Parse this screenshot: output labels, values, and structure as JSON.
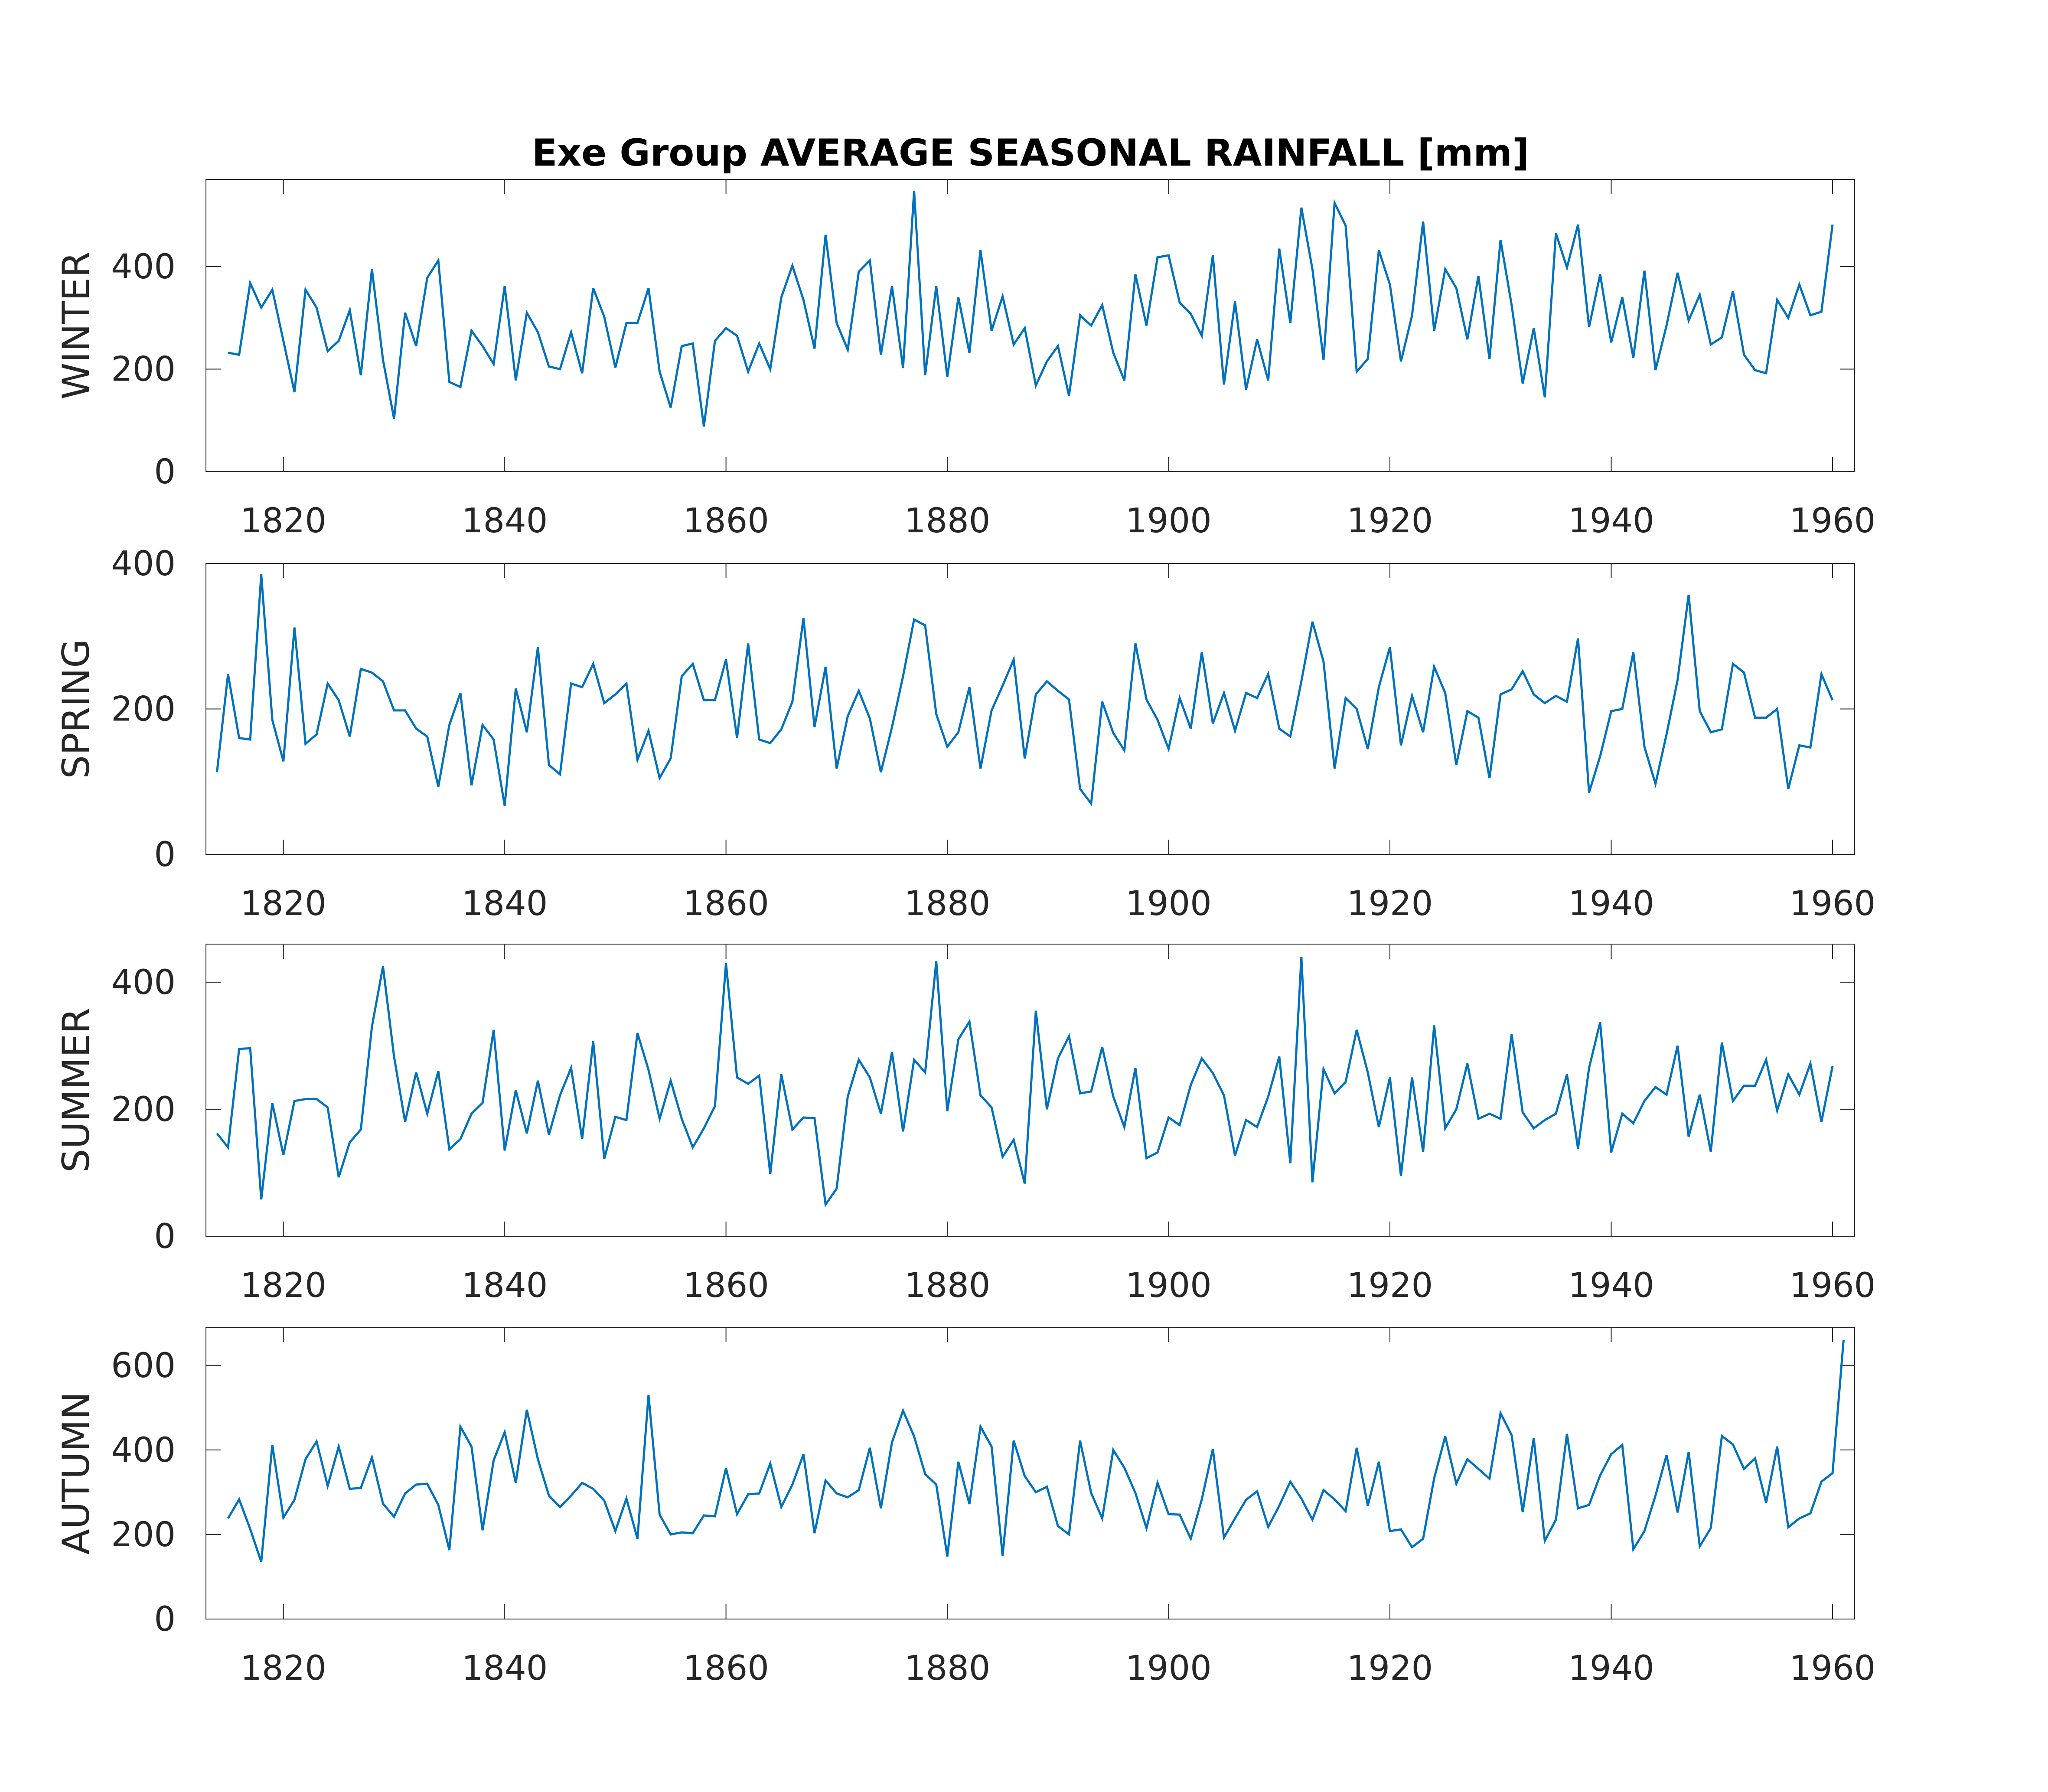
{
  "chart_data": {
    "type": "line",
    "title": "Exe Group AVERAGE SEASONAL RAINFALL [mm]",
    "line_color": "#0072BD",
    "x_ticks": [
      1820,
      1840,
      1860,
      1880,
      1900,
      1920,
      1940,
      1960
    ],
    "xlim": [
      1813,
      1962
    ],
    "grid": false,
    "panels": [
      {
        "ylabel": "WINTER",
        "ylim": [
          0,
          570
        ],
        "y_ticks": [
          0,
          200,
          400
        ],
        "x": [
          1815,
          1816,
          1817,
          1818,
          1819,
          1820,
          1821,
          1822,
          1823,
          1824,
          1825,
          1826,
          1827,
          1828,
          1829,
          1830,
          1831,
          1832,
          1833,
          1834,
          1835,
          1836,
          1837,
          1838,
          1839,
          1840,
          1841,
          1842,
          1843,
          1844,
          1845,
          1846,
          1847,
          1848,
          1849,
          1850,
          1851,
          1852,
          1853,
          1854,
          1855,
          1856,
          1857,
          1858,
          1859,
          1860,
          1861,
          1862,
          1863,
          1864,
          1865,
          1866,
          1867,
          1868,
          1869,
          1870,
          1871,
          1872,
          1873,
          1874,
          1875,
          1876,
          1877,
          1878,
          1879,
          1880,
          1881,
          1882,
          1883,
          1884,
          1885,
          1886,
          1887,
          1888,
          1889,
          1890,
          1891,
          1892,
          1893,
          1894,
          1895,
          1896,
          1897,
          1898,
          1899,
          1900,
          1901,
          1902,
          1903,
          1904,
          1905,
          1906,
          1907,
          1908,
          1909,
          1910,
          1911,
          1912,
          1913,
          1914,
          1915,
          1916,
          1917,
          1918,
          1919,
          1920,
          1921,
          1922,
          1923,
          1924,
          1925,
          1926,
          1927,
          1928,
          1929,
          1930,
          1931,
          1932,
          1933,
          1934,
          1935,
          1936,
          1937,
          1938,
          1939,
          1940,
          1941,
          1942,
          1943,
          1944,
          1945,
          1946,
          1947,
          1948,
          1949,
          1950,
          1951,
          1952,
          1953,
          1954,
          1955,
          1956,
          1957,
          1958,
          1959,
          1960
        ],
        "values": [
          232,
          228,
          368,
          320,
          355,
          255,
          155,
          355,
          320,
          235,
          255,
          315,
          188,
          395,
          218,
          103,
          310,
          245,
          378,
          412,
          175,
          165,
          275,
          245,
          210,
          362,
          178,
          310,
          272,
          205,
          200,
          272,
          192,
          358,
          302,
          203,
          290,
          290,
          358,
          195,
          125,
          245,
          250,
          88,
          255,
          280,
          265,
          195,
          250,
          200,
          340,
          402,
          335,
          240,
          462,
          290,
          238,
          390,
          412,
          228,
          362,
          202,
          548,
          188,
          362,
          185,
          340,
          232,
          432,
          275,
          342,
          248,
          280,
          168,
          215,
          245,
          148,
          305,
          285,
          325,
          232,
          178,
          385,
          285,
          418,
          422,
          330,
          308,
          265,
          422,
          170,
          332,
          160,
          258,
          178,
          435,
          290,
          515,
          395,
          218,
          524,
          480,
          195,
          220,
          432,
          365,
          215,
          305,
          488,
          275,
          395,
          358,
          258,
          382,
          220,
          452,
          325,
          172,
          280,
          145,
          465,
          398,
          482,
          282,
          385,
          252,
          340,
          222,
          392,
          198,
          285,
          388,
          295,
          345,
          248,
          262,
          352,
          228,
          198,
          192,
          335,
          300,
          365,
          305,
          312,
          482
        ]
      },
      {
        "ylabel": "SPRING",
        "ylim": [
          0,
          400
        ],
        "y_ticks": [
          0,
          200,
          400
        ],
        "x": [
          1814,
          1815,
          1816,
          1817,
          1818,
          1819,
          1820,
          1821,
          1822,
          1823,
          1824,
          1825,
          1826,
          1827,
          1828,
          1829,
          1830,
          1831,
          1832,
          1833,
          1834,
          1835,
          1836,
          1837,
          1838,
          1839,
          1840,
          1841,
          1842,
          1843,
          1844,
          1845,
          1846,
          1847,
          1848,
          1849,
          1850,
          1851,
          1852,
          1853,
          1854,
          1855,
          1856,
          1857,
          1858,
          1859,
          1860,
          1861,
          1862,
          1863,
          1864,
          1865,
          1866,
          1867,
          1868,
          1869,
          1870,
          1871,
          1872,
          1873,
          1874,
          1875,
          1876,
          1877,
          1878,
          1879,
          1880,
          1881,
          1882,
          1883,
          1884,
          1885,
          1886,
          1887,
          1888,
          1889,
          1890,
          1891,
          1892,
          1893,
          1894,
          1895,
          1896,
          1897,
          1898,
          1899,
          1900,
          1901,
          1902,
          1903,
          1904,
          1905,
          1906,
          1907,
          1908,
          1909,
          1910,
          1911,
          1912,
          1913,
          1914,
          1915,
          1916,
          1917,
          1918,
          1919,
          1920,
          1921,
          1922,
          1923,
          1924,
          1925,
          1926,
          1927,
          1928,
          1929,
          1930,
          1931,
          1932,
          1933,
          1934,
          1935,
          1936,
          1937,
          1938,
          1939,
          1940,
          1941,
          1942,
          1943,
          1944,
          1945,
          1946,
          1947,
          1948,
          1949,
          1950,
          1951,
          1952,
          1953,
          1954,
          1955,
          1956,
          1957,
          1958,
          1959,
          1960
        ],
        "values": [
          113,
          248,
          160,
          158,
          385,
          185,
          128,
          312,
          152,
          165,
          235,
          212,
          162,
          255,
          250,
          238,
          198,
          198,
          173,
          162,
          93,
          178,
          222,
          95,
          178,
          158,
          67,
          228,
          168,
          285,
          123,
          110,
          235,
          230,
          262,
          208,
          220,
          235,
          130,
          170,
          105,
          132,
          245,
          262,
          212,
          212,
          268,
          160,
          290,
          158,
          153,
          172,
          210,
          325,
          175,
          258,
          118,
          190,
          225,
          187,
          113,
          175,
          245,
          323,
          315,
          193,
          148,
          168,
          230,
          118,
          198,
          232,
          268,
          132,
          220,
          238,
          225,
          213,
          90,
          70,
          210,
          167,
          143,
          290,
          213,
          185,
          145,
          215,
          173,
          278,
          180,
          222,
          170,
          222,
          215,
          248,
          173,
          162,
          238,
          320,
          265,
          118,
          215,
          200,
          145,
          230,
          285,
          150,
          218,
          168,
          258,
          222,
          123,
          197,
          188,
          105,
          220,
          227,
          252,
          220,
          208,
          218,
          210,
          297,
          85,
          135,
          197,
          200,
          278,
          148,
          97,
          165,
          240,
          357,
          197,
          168,
          172,
          262,
          250,
          188,
          188,
          200,
          90,
          150,
          147,
          248,
          212
        ]
      },
      {
        "ylabel": "SUMMER",
        "ylim": [
          0,
          460
        ],
        "y_ticks": [
          0,
          200,
          400
        ],
        "x": [
          1814,
          1815,
          1816,
          1817,
          1818,
          1819,
          1820,
          1821,
          1822,
          1823,
          1824,
          1825,
          1826,
          1827,
          1828,
          1829,
          1830,
          1831,
          1832,
          1833,
          1834,
          1835,
          1836,
          1837,
          1838,
          1839,
          1840,
          1841,
          1842,
          1843,
          1844,
          1845,
          1846,
          1847,
          1848,
          1849,
          1850,
          1851,
          1852,
          1853,
          1854,
          1855,
          1856,
          1857,
          1858,
          1859,
          1860,
          1861,
          1862,
          1863,
          1864,
          1865,
          1866,
          1867,
          1868,
          1869,
          1870,
          1871,
          1872,
          1873,
          1874,
          1875,
          1876,
          1877,
          1878,
          1879,
          1880,
          1881,
          1882,
          1883,
          1884,
          1885,
          1886,
          1887,
          1888,
          1889,
          1890,
          1891,
          1892,
          1893,
          1894,
          1895,
          1896,
          1897,
          1898,
          1899,
          1900,
          1901,
          1902,
          1903,
          1904,
          1905,
          1906,
          1907,
          1908,
          1909,
          1910,
          1911,
          1912,
          1913,
          1914,
          1915,
          1916,
          1917,
          1918,
          1919,
          1920,
          1921,
          1922,
          1923,
          1924,
          1925,
          1926,
          1927,
          1928,
          1929,
          1930,
          1931,
          1932,
          1933,
          1934,
          1935,
          1936,
          1937,
          1938,
          1939,
          1940,
          1941,
          1942,
          1943,
          1944,
          1945,
          1946,
          1947,
          1948,
          1949,
          1950,
          1951,
          1952,
          1953,
          1954,
          1955,
          1956,
          1957,
          1958,
          1959,
          1960
        ],
        "values": [
          162,
          140,
          295,
          296,
          58,
          210,
          128,
          213,
          216,
          216,
          203,
          93,
          148,
          168,
          330,
          425,
          283,
          180,
          258,
          193,
          260,
          137,
          153,
          193,
          210,
          325,
          135,
          230,
          162,
          245,
          160,
          222,
          265,
          153,
          307,
          122,
          188,
          183,
          320,
          262,
          185,
          245,
          185,
          140,
          170,
          205,
          430,
          250,
          240,
          253,
          98,
          255,
          168,
          187,
          186,
          50,
          75,
          220,
          278,
          250,
          193,
          290,
          165,
          278,
          258,
          433,
          197,
          310,
          338,
          222,
          203,
          125,
          152,
          83,
          355,
          200,
          280,
          315,
          225,
          228,
          298,
          220,
          172,
          265,
          123,
          132,
          187,
          175,
          238,
          280,
          257,
          222,
          127,
          183,
          172,
          220,
          283,
          115,
          440,
          85,
          263,
          225,
          243,
          325,
          258,
          172,
          250,
          95,
          250,
          133,
          332,
          170,
          200,
          272,
          185,
          193,
          185,
          318,
          195,
          170,
          183,
          193,
          255,
          138,
          265,
          337,
          132,
          193,
          178,
          213,
          235,
          223,
          300,
          157,
          223,
          133,
          305,
          213,
          237,
          237,
          278,
          198,
          255,
          223,
          272,
          180,
          268
        ]
      },
      {
        "ylabel": "AUTUMN",
        "ylim": [
          0,
          690
        ],
        "y_ticks": [
          0,
          200,
          400,
          600
        ],
        "x": [
          1815,
          1816,
          1817,
          1818,
          1819,
          1820,
          1821,
          1822,
          1823,
          1824,
          1825,
          1826,
          1827,
          1828,
          1829,
          1830,
          1831,
          1832,
          1833,
          1834,
          1835,
          1836,
          1837,
          1838,
          1839,
          1840,
          1841,
          1842,
          1843,
          1844,
          1845,
          1846,
          1847,
          1848,
          1849,
          1850,
          1851,
          1852,
          1853,
          1854,
          1855,
          1856,
          1857,
          1858,
          1859,
          1860,
          1861,
          1862,
          1863,
          1864,
          1865,
          1866,
          1867,
          1868,
          1869,
          1870,
          1871,
          1872,
          1873,
          1874,
          1875,
          1876,
          1877,
          1878,
          1879,
          1880,
          1881,
          1882,
          1883,
          1884,
          1885,
          1886,
          1887,
          1888,
          1889,
          1890,
          1891,
          1892,
          1893,
          1894,
          1895,
          1896,
          1897,
          1898,
          1899,
          1900,
          1901,
          1902,
          1903,
          1904,
          1905,
          1906,
          1907,
          1908,
          1909,
          1910,
          1911,
          1912,
          1913,
          1914,
          1915,
          1916,
          1917,
          1918,
          1919,
          1920,
          1921,
          1922,
          1923,
          1924,
          1925,
          1926,
          1927,
          1928,
          1929,
          1930,
          1931,
          1932,
          1933,
          1934,
          1935,
          1936,
          1937,
          1938,
          1939,
          1940,
          1941,
          1942,
          1943,
          1944,
          1945,
          1946,
          1947,
          1948,
          1949,
          1950,
          1951,
          1952,
          1953,
          1954,
          1955,
          1956,
          1957,
          1958,
          1959,
          1960,
          1961
        ],
        "values": [
          238,
          283,
          213,
          135,
          412,
          240,
          282,
          378,
          420,
          315,
          408,
          308,
          310,
          382,
          273,
          242,
          297,
          318,
          320,
          270,
          163,
          455,
          408,
          210,
          375,
          442,
          322,
          495,
          378,
          292,
          265,
          292,
          322,
          308,
          280,
          208,
          285,
          190,
          530,
          247,
          200,
          205,
          203,
          245,
          243,
          357,
          248,
          295,
          297,
          368,
          265,
          318,
          390,
          203,
          328,
          297,
          288,
          305,
          405,
          262,
          418,
          493,
          432,
          343,
          318,
          148,
          372,
          272,
          455,
          408,
          150,
          422,
          338,
          300,
          313,
          220,
          200,
          422,
          298,
          238,
          400,
          358,
          298,
          215,
          322,
          248,
          247,
          190,
          283,
          402,
          193,
          238,
          282,
          302,
          218,
          268,
          325,
          285,
          235,
          305,
          283,
          255,
          405,
          268,
          372,
          208,
          212,
          170,
          190,
          333,
          432,
          320,
          378,
          355,
          332,
          487,
          435,
          253,
          428,
          185,
          235,
          438,
          262,
          270,
          340,
          390,
          412,
          165,
          208,
          292,
          388,
          252,
          395,
          172,
          215,
          433,
          413,
          355,
          380,
          275,
          408,
          217,
          238,
          250,
          325,
          345,
          660
        ]
      }
    ]
  }
}
